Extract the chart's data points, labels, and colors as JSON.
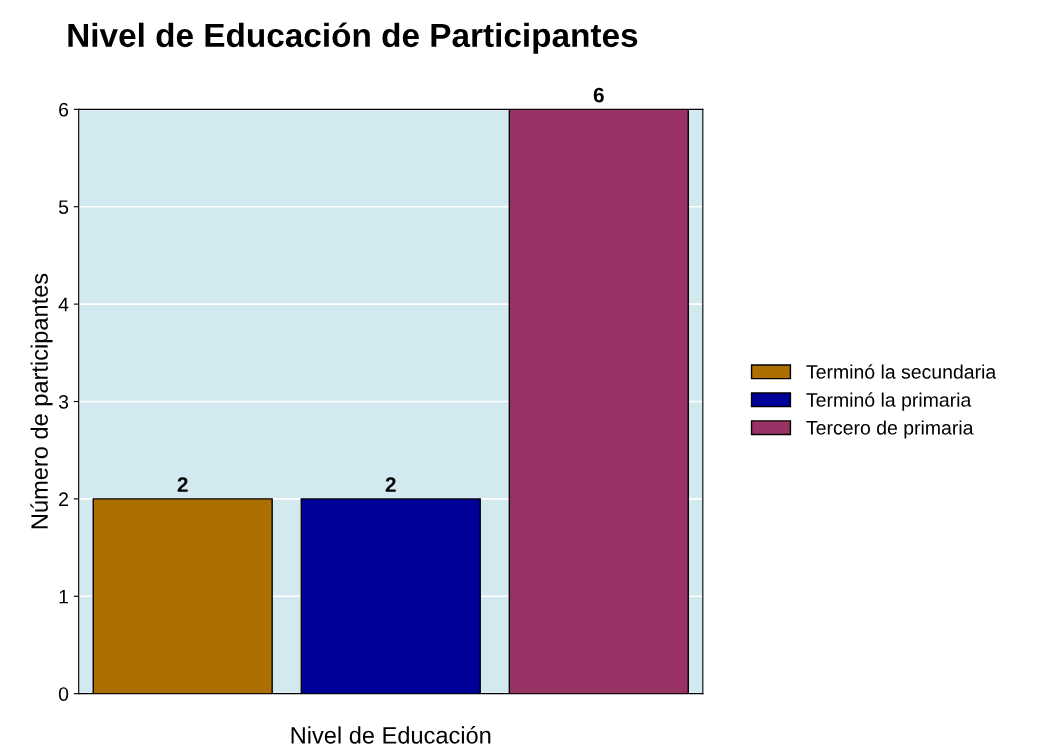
{
  "chart_data": {
    "type": "bar",
    "title": "Nivel de Educación de Participantes",
    "xlabel": "Nivel de Educación",
    "ylabel": "Número de participantes",
    "categories": [
      null,
      null,
      null
    ],
    "series": [
      {
        "name": "Terminó la secundaria",
        "color": "#ad7000",
        "values": [
          2,
          null,
          null
        ]
      },
      {
        "name": "Terminó la primaria",
        "color": "#000099",
        "values": [
          null,
          2,
          null
        ]
      },
      {
        "name": "Tercero de primaria",
        "color": "#993366",
        "values": [
          null,
          null,
          6
        ]
      }
    ],
    "ylim": [
      0,
      6
    ],
    "yticks": [
      0,
      1,
      2,
      3,
      4,
      5,
      6
    ],
    "grid": "y",
    "legend": "right",
    "data_labels": true
  }
}
